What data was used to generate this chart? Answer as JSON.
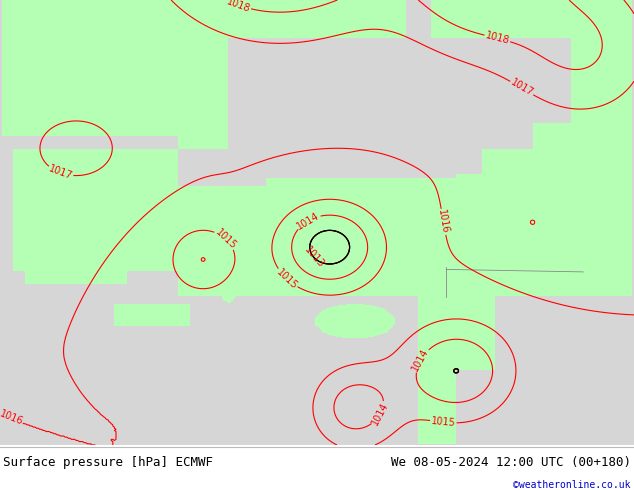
{
  "title_left": "Surface pressure [hPa] ECMWF",
  "title_right": "We 08-05-2024 12:00 UTC (00+180)",
  "credit": "©weatheronline.co.uk",
  "credit_color": "#0000cc",
  "background_color": "#ffffff",
  "map_bg_sea": "#d8d8d8",
  "map_bg_land": "#b8ffb8",
  "contour_color_red": "#ff0000",
  "contour_color_black": "#000000",
  "border_color": "#aaaaaa",
  "text_color": "#000000",
  "figsize": [
    6.34,
    4.9
  ],
  "dpi": 100,
  "title_fontsize": 9,
  "label_fontsize": 7,
  "lon_min": 19.0,
  "lon_max": 44.0,
  "lat_min": 30.0,
  "lat_max": 48.0
}
